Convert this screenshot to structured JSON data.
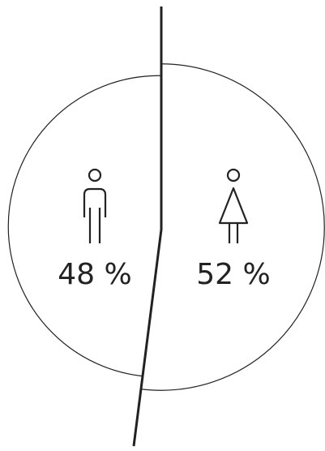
{
  "chart_data": {
    "type": "pie",
    "values": [
      48,
      52
    ],
    "value_labels": [
      "48 %",
      "52 %"
    ]
  }
}
